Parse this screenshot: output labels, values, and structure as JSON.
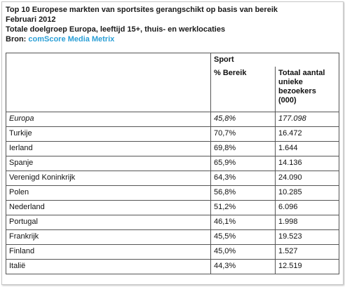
{
  "header": {
    "title_line1": "Top 10 Europese markten van sportsites gerangschikt op basis van bereik",
    "title_line2": "Februari 2012",
    "subtitle": "Totale doelgroep Europa, leeftijd 15+, thuis- en werklocaties",
    "source_label": "Bron: ",
    "source_name": "comScore Media Metrix"
  },
  "table": {
    "group_header": "Sport",
    "col_reach": "% Bereik",
    "col_visitors": "Totaal aantal unieke bezoekers (000)",
    "rows": [
      {
        "market": "Europa",
        "reach": "45,8%",
        "visitors": "177.098"
      },
      {
        "market": "Turkije",
        "reach": "70,7%",
        "visitors": "16.472"
      },
      {
        "market": "Ierland",
        "reach": "69,8%",
        "visitors": "1.644"
      },
      {
        "market": "Spanje",
        "reach": "65,9%",
        "visitors": "14.136"
      },
      {
        "market": "Verenigd Koninkrijk",
        "reach": "64,3%",
        "visitors": "24.090"
      },
      {
        "market": "Polen",
        "reach": "56,8%",
        "visitors": "10.285"
      },
      {
        "market": "Nederland",
        "reach": "51,2%",
        "visitors": "6.096"
      },
      {
        "market": "Portugal",
        "reach": "46,1%",
        "visitors": "1.998"
      },
      {
        "market": "Frankrijk",
        "reach": "45,5%",
        "visitors": "19.523"
      },
      {
        "market": "Finland",
        "reach": "45,0%",
        "visitors": "1.527"
      },
      {
        "market": "Italië",
        "reach": "44,3%",
        "visitors": "12.519"
      }
    ]
  }
}
